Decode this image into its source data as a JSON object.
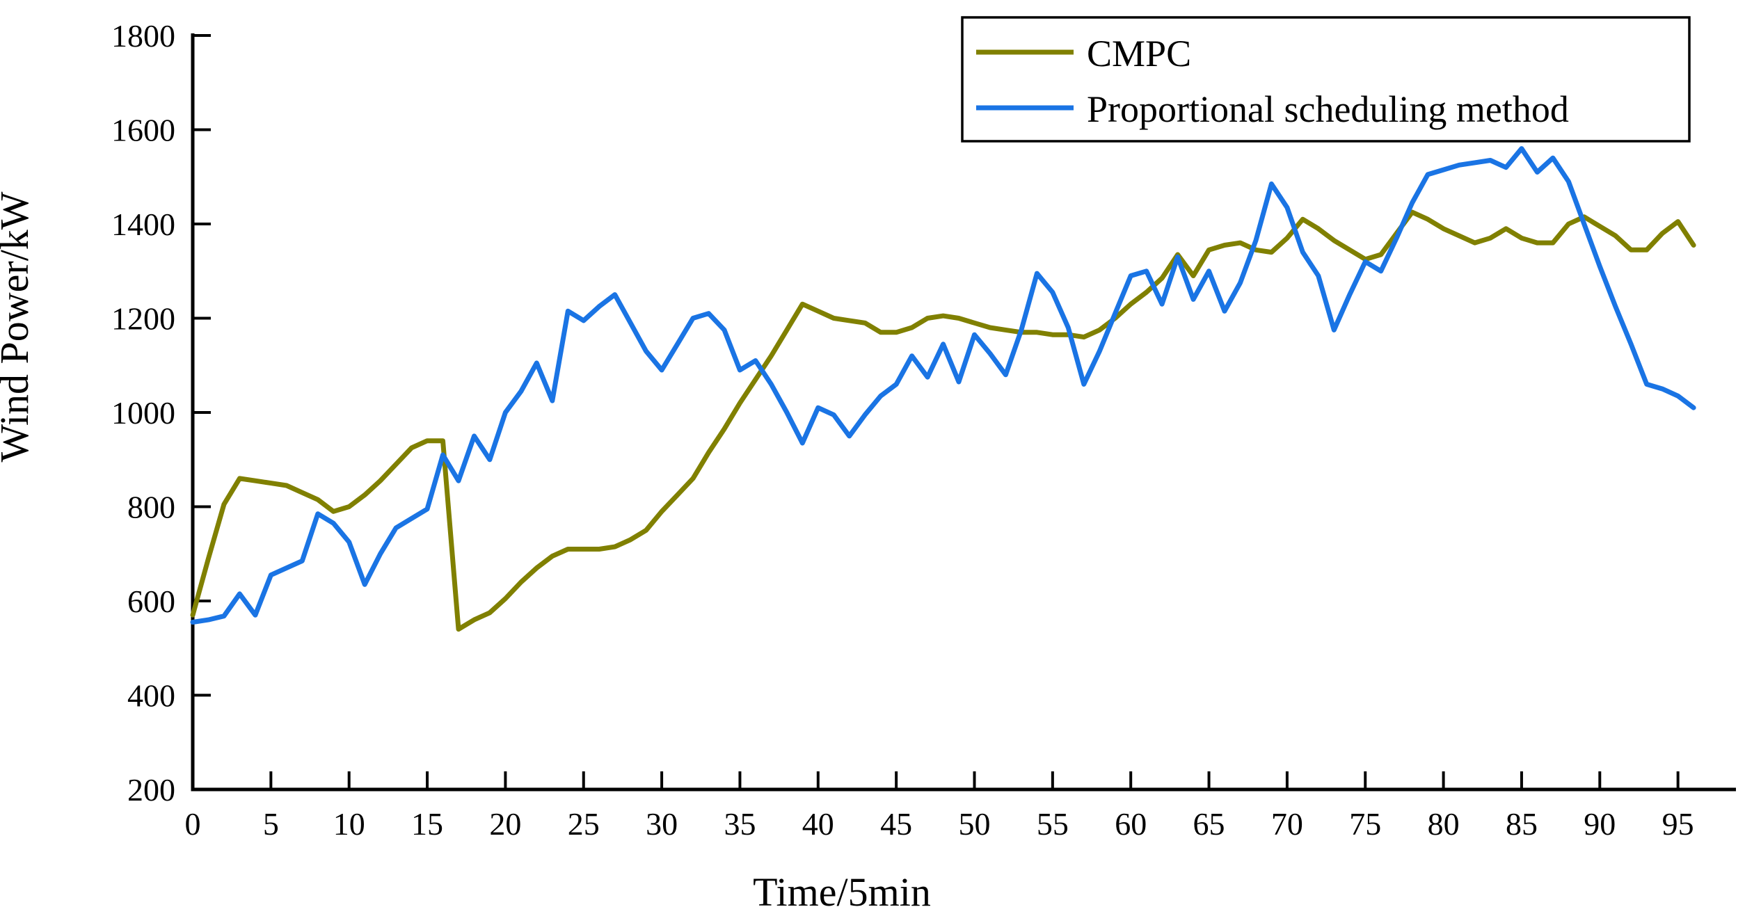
{
  "figure": {
    "background_color": "#ffffff",
    "axis_color": "#000000"
  },
  "chart_data": {
    "type": "line",
    "title": "",
    "xlabel": "Time/5min",
    "ylabel": "Wind Power/kW",
    "xlim": [
      0,
      97.5
    ],
    "ylim": [
      200,
      1800
    ],
    "xticks": [
      0,
      5,
      10,
      15,
      20,
      25,
      30,
      35,
      40,
      45,
      50,
      55,
      60,
      65,
      70,
      75,
      80,
      85,
      90,
      95
    ],
    "yticks": [
      200,
      400,
      600,
      800,
      1000,
      1200,
      1400,
      1600,
      1800
    ],
    "grid": false,
    "legend_position": "top-right",
    "x_start": 0,
    "x_step": 1,
    "series": [
      {
        "name": "CMPC",
        "color": "#808000",
        "values": [
          570,
          690,
          805,
          860,
          855,
          850,
          845,
          830,
          815,
          790,
          800,
          825,
          855,
          890,
          925,
          940,
          940,
          540,
          560,
          575,
          605,
          640,
          670,
          695,
          710,
          710,
          710,
          715,
          730,
          750,
          790,
          825,
          860,
          915,
          965,
          1020,
          1070,
          1120,
          1175,
          1230,
          1215,
          1200,
          1195,
          1190,
          1170,
          1170,
          1180,
          1200,
          1205,
          1200,
          1190,
          1180,
          1175,
          1170,
          1170,
          1165,
          1165,
          1160,
          1175,
          1200,
          1230,
          1255,
          1285,
          1335,
          1290,
          1345,
          1355,
          1360,
          1345,
          1340,
          1370,
          1410,
          1390,
          1365,
          1345,
          1325,
          1335,
          1380,
          1425,
          1410,
          1390,
          1375,
          1360,
          1370,
          1390,
          1370,
          1360,
          1360,
          1400,
          1415,
          1395,
          1375,
          1345,
          1345,
          1380,
          1405,
          1355
        ]
      },
      {
        "name": "Proportional scheduling method",
        "color": "#1A74E4",
        "values": [
          555,
          560,
          568,
          615,
          570,
          655,
          670,
          685,
          785,
          765,
          725,
          635,
          700,
          755,
          775,
          795,
          910,
          855,
          950,
          900,
          1000,
          1045,
          1105,
          1025,
          1215,
          1195,
          1225,
          1250,
          1190,
          1130,
          1090,
          1145,
          1200,
          1210,
          1175,
          1090,
          1110,
          1060,
          1000,
          935,
          1010,
          995,
          950,
          995,
          1035,
          1060,
          1120,
          1075,
          1145,
          1065,
          1165,
          1125,
          1080,
          1175,
          1295,
          1255,
          1180,
          1060,
          1130,
          1210,
          1290,
          1300,
          1230,
          1330,
          1240,
          1300,
          1215,
          1275,
          1365,
          1485,
          1435,
          1340,
          1290,
          1175,
          1250,
          1320,
          1300,
          1370,
          1445,
          1505,
          1515,
          1525,
          1530,
          1535,
          1520,
          1560,
          1510,
          1540,
          1490,
          1400,
          1310,
          1225,
          1145,
          1060,
          1050,
          1035,
          1010
        ]
      }
    ]
  }
}
